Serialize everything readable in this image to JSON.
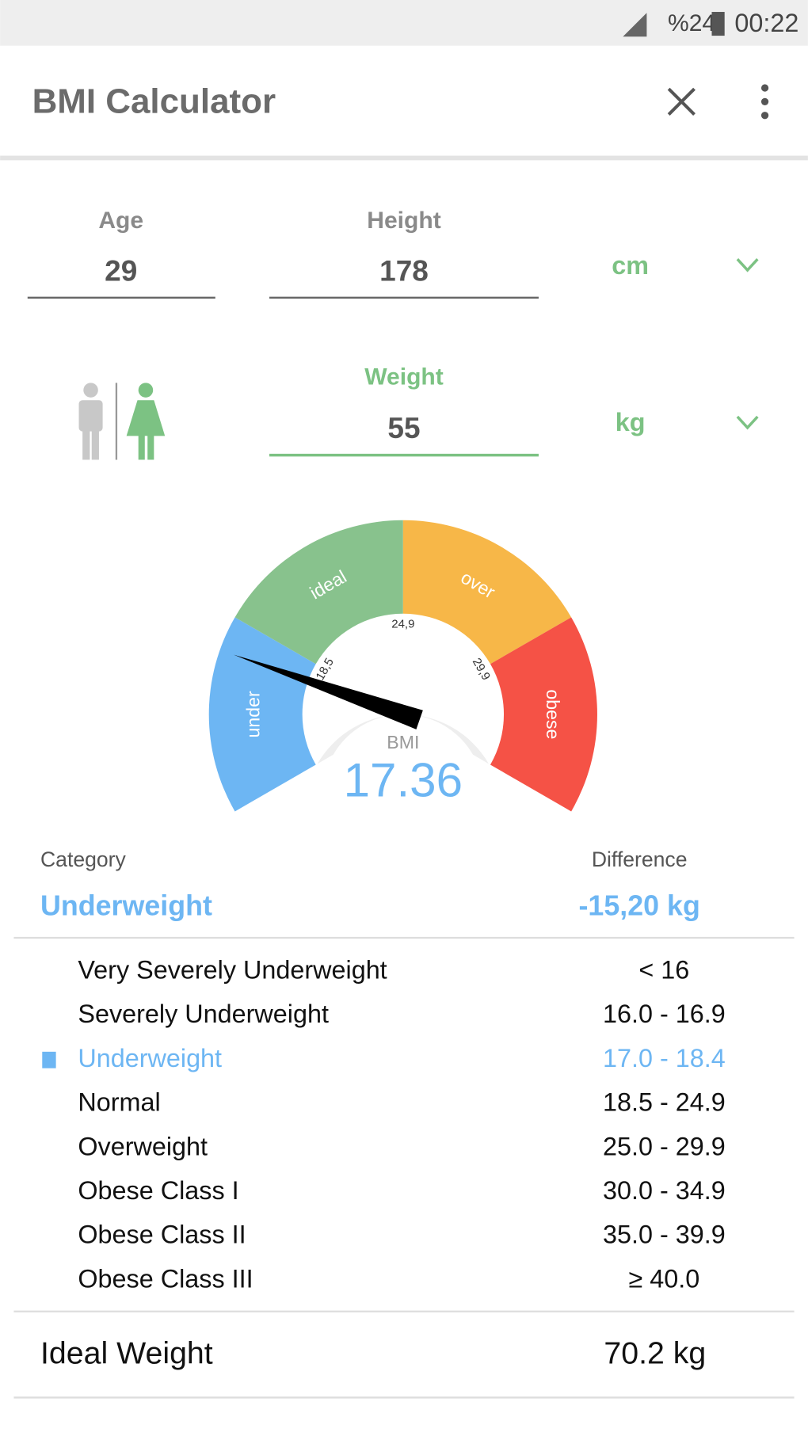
{
  "status": {
    "battery": "%24",
    "time": "00:22"
  },
  "appbar": {
    "title": "BMI Calculator"
  },
  "form": {
    "age_label": "Age",
    "age": "29",
    "height_label": "Height",
    "height": "178",
    "height_unit": "cm",
    "weight_label": "Weight",
    "weight": "55",
    "weight_unit": "kg"
  },
  "gauge": {
    "segments": [
      {
        "label": "under",
        "color": "#6db6f3"
      },
      {
        "label": "ideal",
        "color": "#88c28d"
      },
      {
        "label": "over",
        "color": "#f7b748"
      },
      {
        "label": "obese",
        "color": "#f55246"
      }
    ],
    "ticks": [
      {
        "value": 18.5,
        "label": "18,5"
      },
      {
        "value": 24.9,
        "label": "24,9"
      },
      {
        "value": 29.9,
        "label": "29,9"
      }
    ],
    "caption": "BMI",
    "value": 17.36
  },
  "result": {
    "category_label": "Category",
    "category": "Underweight",
    "difference_label": "Difference",
    "difference": "-15,20 kg"
  },
  "table": {
    "selected": 2,
    "rows": [
      [
        "Very Severely Underweight",
        "< 16"
      ],
      [
        "Severely Underweight",
        "16.0 - 16.9"
      ],
      [
        "Underweight",
        "17.0 - 18.4"
      ],
      [
        "Normal",
        "18.5 - 24.9"
      ],
      [
        "Overweight",
        "25.0 - 29.9"
      ],
      [
        "Obese Class I",
        "30.0 - 34.9"
      ],
      [
        "Obese Class II",
        "35.0 - 39.9"
      ],
      [
        "Obese Class III",
        "≥ 40.0"
      ]
    ]
  },
  "ideal": {
    "label": "Ideal Weight",
    "value": "70.2 kg"
  }
}
